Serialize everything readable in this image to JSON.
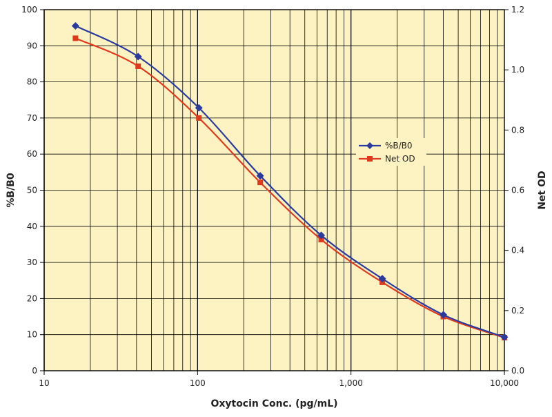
{
  "colors": {
    "plot_background": "#fdf3c2",
    "grid": "#000000",
    "series_b_b0": "#2b3a9e",
    "series_net_od": "#e03a1e"
  },
  "chart_data": {
    "type": "line",
    "title": "",
    "xlabel": "Oxytocin Conc. (pg/mL)",
    "ylabel": "%B/B0",
    "y2label": "Net OD",
    "x_scale": "log",
    "xlim": [
      10,
      10000
    ],
    "ylim": [
      0,
      100
    ],
    "y2lim": [
      0,
      1.2
    ],
    "grid": true,
    "legend_position": "center-right",
    "x_tick_labels": [
      "10",
      "100",
      "1,000",
      "10,000"
    ],
    "y_tick_labels": [
      "0",
      "10",
      "20",
      "30",
      "40",
      "50",
      "60",
      "70",
      "80",
      "90",
      "100"
    ],
    "y2_tick_labels": [
      "0.0",
      "0.2",
      "0.4",
      "0.6",
      "0.8",
      "1.0",
      "1.2"
    ],
    "series": [
      {
        "name": "%B/B0",
        "axis": "left",
        "marker": "diamond",
        "color": "#2b3a9e",
        "x": [
          16,
          41,
          102,
          256,
          640,
          1600,
          4000,
          10000
        ],
        "values": [
          95.5,
          87,
          72.8,
          54,
          37.5,
          25.5,
          15.5,
          9.3
        ]
      },
      {
        "name": "Net OD",
        "axis": "right",
        "marker": "square",
        "color": "#e03a1e",
        "x": [
          16,
          41,
          102,
          256,
          640,
          1600,
          4000,
          10000
        ],
        "values": [
          1.105,
          1.012,
          0.84,
          0.626,
          0.436,
          0.294,
          0.18,
          0.11
        ]
      }
    ]
  }
}
